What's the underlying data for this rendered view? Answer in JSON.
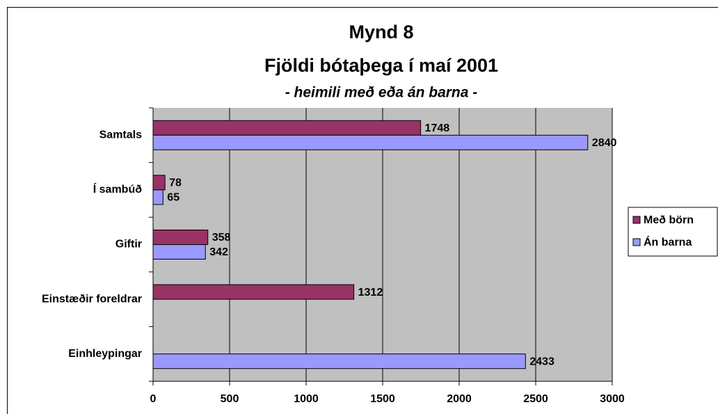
{
  "chart_data": {
    "type": "hbar",
    "title": "Mynd 8",
    "subtitle": "Fjöldi bótaþega í maí 2001",
    "annotation": "- heimili með eða án barna -",
    "categories": [
      "Samtals",
      "Í sambúð",
      "Giftir",
      "Einstæðir foreldrar",
      "Einhleypingar"
    ],
    "series": [
      {
        "name": "Með börn",
        "color": "#993366",
        "values": [
          1748,
          78,
          358,
          1312,
          null
        ]
      },
      {
        "name": "Án barna",
        "color": "#9999ff",
        "values": [
          2840,
          65,
          342,
          null,
          2433
        ]
      }
    ],
    "xlim": [
      0,
      3000
    ],
    "xticks": [
      0,
      500,
      1000,
      1500,
      2000,
      2500,
      3000
    ],
    "grid": true,
    "legend": "right",
    "plot_background": "#c0c0c0"
  }
}
